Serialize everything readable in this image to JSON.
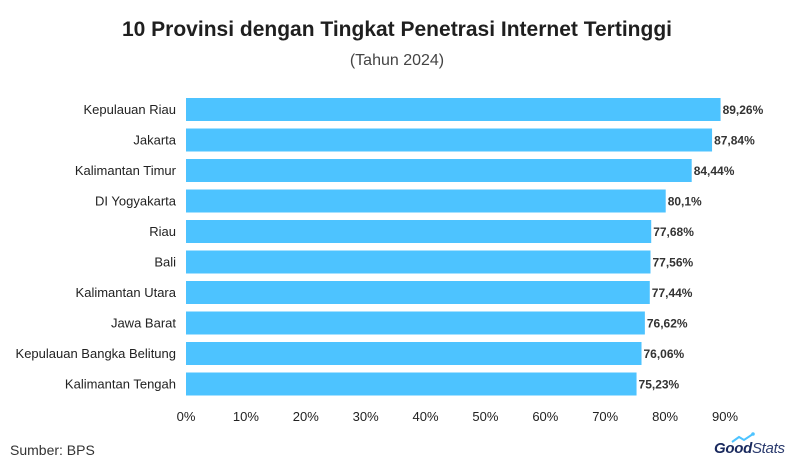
{
  "chart_data": {
    "type": "bar",
    "orientation": "horizontal",
    "title": "10 Provinsi dengan Tingkat Penetrasi Internet Tertinggi",
    "subtitle": "(Tahun 2024)",
    "categories": [
      "Kepulauan Riau",
      "Jakarta",
      "Kalimantan Timur",
      "DI Yogyakarta",
      "Riau",
      "Bali",
      "Kalimantan Utara",
      "Jawa Barat",
      "Kepulauan Bangka Belitung",
      "Kalimantan Tengah"
    ],
    "values": [
      89.26,
      87.84,
      84.44,
      80.1,
      77.68,
      77.56,
      77.44,
      76.62,
      76.06,
      75.23
    ],
    "value_labels": [
      "89,26%",
      "87,84%",
      "84,44%",
      "80,1%",
      "77,68%",
      "77,56%",
      "77,44%",
      "76,62%",
      "76,06%",
      "75,23%"
    ],
    "xlim": [
      0,
      90
    ],
    "x_ticks": [
      0,
      10,
      20,
      30,
      40,
      50,
      60,
      70,
      80,
      90
    ],
    "x_tick_labels": [
      "0%",
      "10%",
      "20%",
      "30%",
      "40%",
      "50%",
      "60%",
      "70%",
      "80%",
      "90%"
    ],
    "xlabel": "",
    "ylabel": "",
    "grid": false,
    "legend": "none",
    "bar_color": "#4dc3ff"
  },
  "footer": {
    "source": "Sumber: BPS",
    "logo_bold": "Good",
    "logo_light": "Stats"
  },
  "colors": {
    "bar": "#4dc3ff",
    "logo": "#1a2a5e"
  }
}
